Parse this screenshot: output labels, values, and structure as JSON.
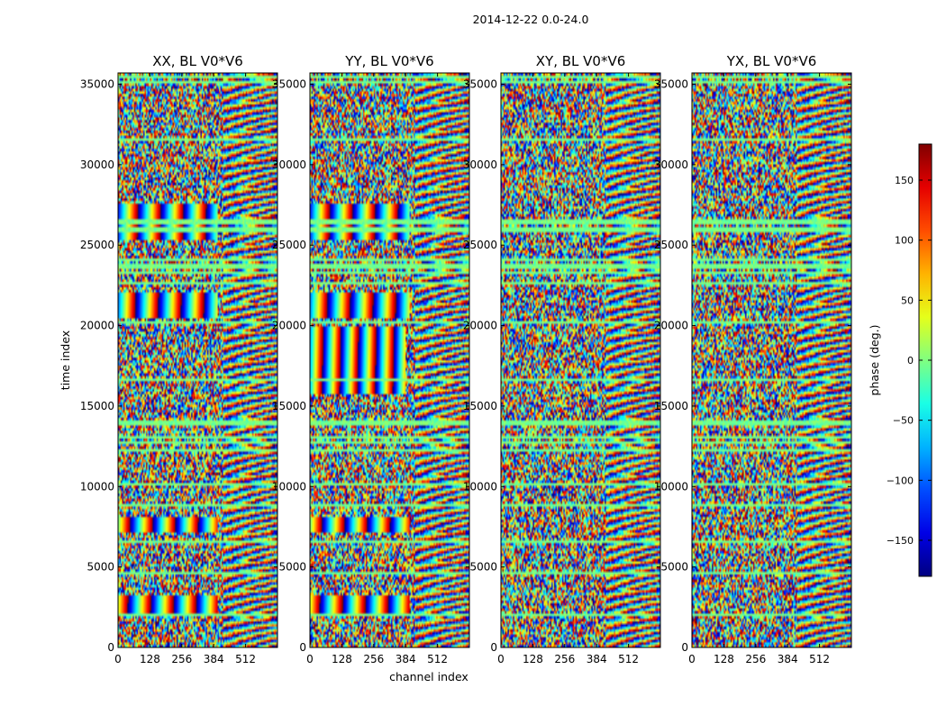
{
  "figure": {
    "suptitle": "2014-12-22 0.0-24.0"
  },
  "chart_data": {
    "type": "heatmap",
    "title": "2014-12-22 0.0-24.0",
    "xlabel": "channel index",
    "ylabel": "time index",
    "xlim": [
      0,
      640
    ],
    "ylim": [
      0,
      35700
    ],
    "xticks": [
      "0",
      "128",
      "256",
      "384",
      "512"
    ],
    "yticks": [
      "0",
      "5000",
      "10000",
      "15000",
      "20000",
      "25000",
      "30000",
      "35000"
    ],
    "panels": [
      {
        "name": "XX, BL V0*V6"
      },
      {
        "name": "YY, BL V0*V6"
      },
      {
        "name": "XY, BL V0*V6"
      },
      {
        "name": "YX, BL V0*V6"
      }
    ],
    "colorbar": {
      "label": "phase (deg.)",
      "range": [
        -180,
        180
      ],
      "ticks": [
        "150",
        "100",
        "50",
        "0",
        "−50",
        "−100",
        "−150"
      ],
      "colormap": "jet"
    }
  }
}
